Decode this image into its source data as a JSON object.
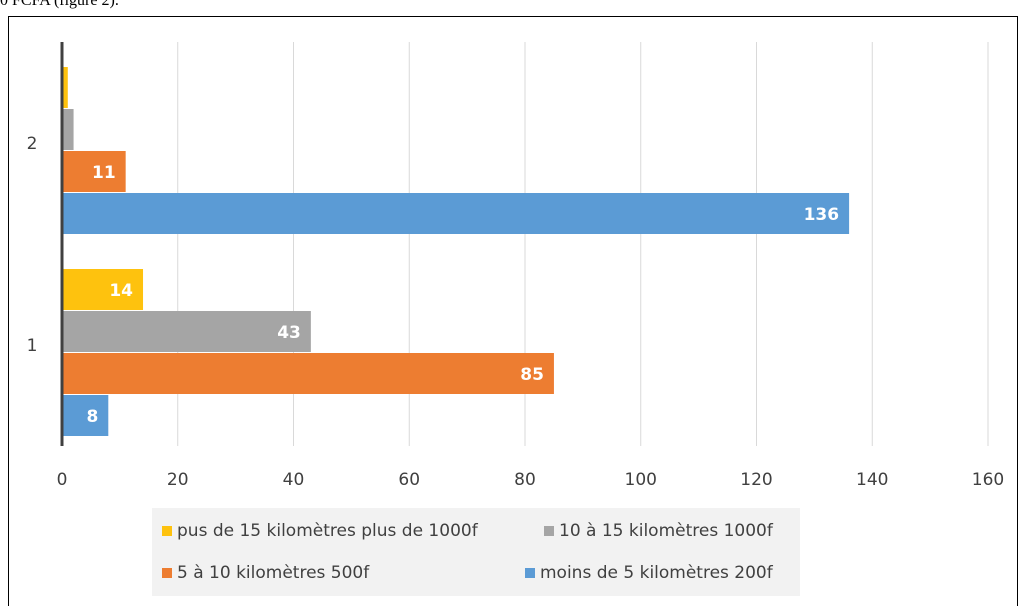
{
  "caption": "0 FCFA (figure 2).",
  "colors": {
    "yellow": "#fec20e",
    "gray": "#a5a5a5",
    "orange": "#ed7d31",
    "blue": "#5b9bd5"
  },
  "chart_data": {
    "type": "bar",
    "orientation": "horizontal",
    "categories": [
      "1",
      "2"
    ],
    "xlim": [
      0,
      160
    ],
    "xticks": [
      0,
      20,
      40,
      60,
      80,
      100,
      120,
      140,
      160
    ],
    "grid": "vertical",
    "legend_position": "bottom",
    "series": [
      {
        "name": "moins de 5 kilomètres 200f",
        "values": [
          8,
          136
        ],
        "labels": [
          "8",
          "136"
        ]
      },
      {
        "name": "5 à 10 kilomètres 500f",
        "values": [
          85,
          11
        ],
        "labels": [
          "85",
          "11"
        ]
      },
      {
        "name": "10 à 15 kilomètres 1000f",
        "values": [
          43,
          2
        ],
        "labels": [
          "43",
          ""
        ]
      },
      {
        "name": "pus de 15 kilomètres plus de 1000f",
        "values": [
          14,
          1
        ],
        "labels": [
          "14",
          ""
        ]
      }
    ]
  }
}
